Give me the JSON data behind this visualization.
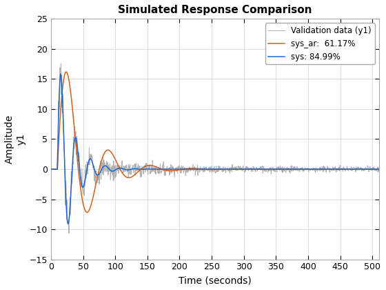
{
  "title": "Simulated Response Comparison",
  "xlabel": "Time (seconds)",
  "ylabel_top": "Amplitude",
  "ylabel_bottom": "y1",
  "xlim": [
    0,
    510
  ],
  "ylim": [
    -15,
    25
  ],
  "yticks": [
    -15,
    -10,
    -5,
    0,
    5,
    10,
    15,
    20,
    25
  ],
  "xticks": [
    0,
    50,
    100,
    150,
    200,
    250,
    300,
    350,
    400,
    450,
    500
  ],
  "legend_labels": [
    "Validation data (y1)",
    "sys: 84.99%",
    "sys_ar:  61.17%"
  ],
  "colors": {
    "validation": "#b0b0b0",
    "sys": "#2166c8",
    "sys_ar": "#d45f1a"
  },
  "line_widths": {
    "validation": 0.7,
    "sys": 1.1,
    "sys_ar": 1.1
  },
  "t_max": 511,
  "dt": 0.5,
  "background_color": "#ffffff"
}
